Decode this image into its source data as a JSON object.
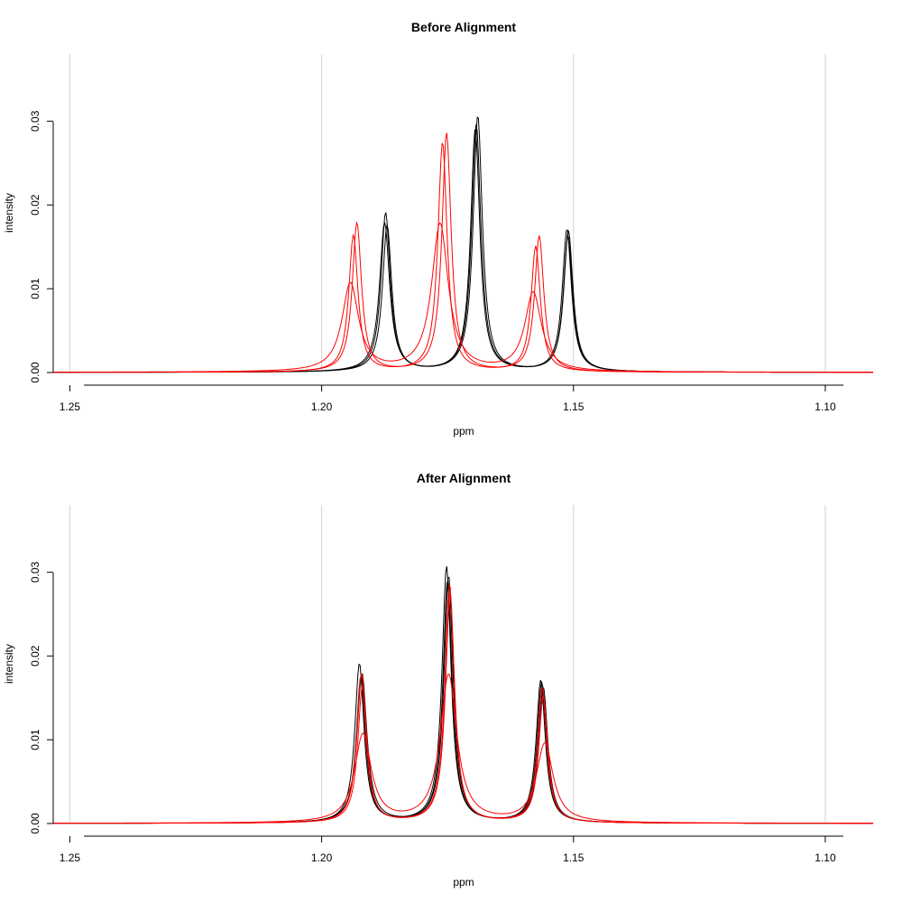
{
  "colors": {
    "group_a": "#000000",
    "group_b": "#ff0000",
    "grid": "#d3d3d3"
  },
  "chart_data": [
    {
      "type": "line",
      "title": "Before Alignment",
      "xlabel": "ppm",
      "ylabel": "intensity",
      "xlim": [
        1.2533,
        1.0905
      ],
      "ylim": [
        0,
        0.038
      ],
      "x_reversed": true,
      "xticks": [
        "1.25",
        "1.20",
        "1.15",
        "1.10"
      ],
      "yticks": [
        "0.00",
        "0.01",
        "0.02",
        "0.03"
      ],
      "grid": "vertical",
      "series": [
        {
          "color": "#000000",
          "peaks": [
            [
              1.1873,
              0.019,
              0.0011
            ],
            [
              1.1695,
              0.029,
              0.0011
            ],
            [
              1.1513,
              0.017,
              0.0011
            ]
          ]
        },
        {
          "color": "#000000",
          "peaks": [
            [
              1.187,
              0.0175,
              0.0011
            ],
            [
              1.169,
              0.0306,
              0.0011
            ],
            [
              1.151,
              0.0168,
              0.0011
            ]
          ]
        },
        {
          "color": "#000000",
          "peaks": [
            [
              1.1875,
              0.0178,
              0.0012
            ],
            [
              1.1693,
              0.0295,
              0.0011
            ],
            [
              1.1511,
              0.0162,
              0.0011
            ]
          ]
        },
        {
          "color": "#ff0000",
          "peaks": [
            [
              1.193,
              0.0178,
              0.0011
            ],
            [
              1.1752,
              0.0285,
              0.0011
            ],
            [
              1.1568,
              0.0162,
              0.0011
            ]
          ]
        },
        {
          "color": "#ff0000",
          "peaks": [
            [
              1.1937,
              0.0163,
              0.0011
            ],
            [
              1.176,
              0.0274,
              0.0011
            ],
            [
              1.1575,
              0.015,
              0.0011
            ]
          ]
        },
        {
          "color": "#ff0000",
          "peaks": [
            [
              1.1943,
              0.0105,
              0.002
            ],
            [
              1.1765,
              0.0176,
              0.002
            ],
            [
              1.158,
              0.0094,
              0.002
            ]
          ]
        }
      ]
    },
    {
      "type": "line",
      "title": "After Alignment",
      "xlabel": "ppm",
      "ylabel": "intensity",
      "xlim": [
        1.2533,
        1.0905
      ],
      "ylim": [
        0,
        0.038
      ],
      "x_reversed": true,
      "xticks": [
        "1.25",
        "1.20",
        "1.15",
        "1.10"
      ],
      "yticks": [
        "0.00",
        "0.01",
        "0.02",
        "0.03"
      ],
      "grid": "vertical",
      "series": [
        {
          "color": "#000000",
          "peaks": [
            [
              1.1925,
              0.019,
              0.0011
            ],
            [
              1.175,
              0.029,
              0.0011
            ],
            [
              1.1565,
              0.017,
              0.0011
            ]
          ]
        },
        {
          "color": "#000000",
          "peaks": [
            [
              1.1922,
              0.0175,
              0.0011
            ],
            [
              1.1752,
              0.0306,
              0.0011
            ],
            [
              1.1563,
              0.0168,
              0.0011
            ]
          ]
        },
        {
          "color": "#000000",
          "peaks": [
            [
              1.192,
              0.0178,
              0.0012
            ],
            [
              1.1748,
              0.0295,
              0.0011
            ],
            [
              1.156,
              0.0162,
              0.0011
            ]
          ]
        },
        {
          "color": "#ff0000",
          "peaks": [
            [
              1.1921,
              0.0178,
              0.0011
            ],
            [
              1.1746,
              0.0285,
              0.0011
            ],
            [
              1.1562,
              0.0162,
              0.0011
            ]
          ]
        },
        {
          "color": "#ff0000",
          "peaks": [
            [
              1.1919,
              0.0163,
              0.0011
            ],
            [
              1.1745,
              0.0274,
              0.0011
            ],
            [
              1.156,
              0.015,
              0.0011
            ]
          ]
        },
        {
          "color": "#ff0000",
          "peaks": [
            [
              1.1918,
              0.0105,
              0.002
            ],
            [
              1.1748,
              0.0176,
              0.002
            ],
            [
              1.1557,
              0.0094,
              0.002
            ]
          ]
        }
      ]
    }
  ]
}
